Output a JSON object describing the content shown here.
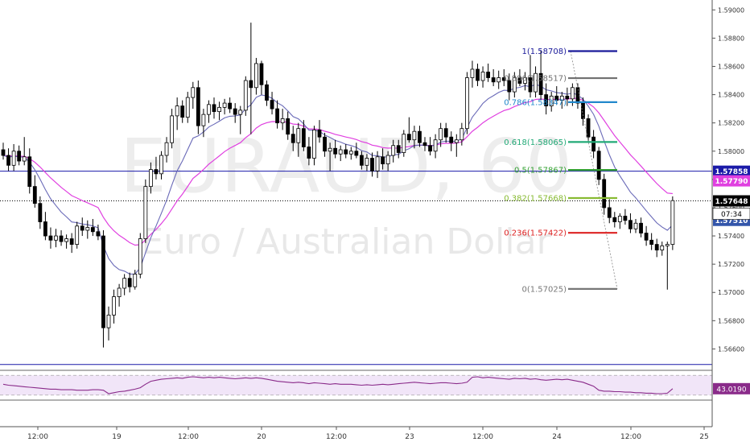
{
  "chart_data": {
    "type": "candlestick",
    "watermark": {
      "symbol": "EURAUD, 60",
      "description": "Euro / Australian Dollar"
    },
    "y_axis": {
      "range": [
        1.5646,
        1.5907
      ],
      "ticks": [
        "1.59000",
        "1.58800",
        "1.58600",
        "1.58400",
        "1.58200",
        "1.58000",
        "1.57800",
        "1.57600",
        "1.57400",
        "1.57200",
        "1.57000",
        "1.56800",
        "1.56600"
      ]
    },
    "x_axis": {
      "ticks": [
        "12:00",
        "19",
        "12:00",
        "20",
        "12:00",
        "23",
        "12:00",
        "24",
        "12:00",
        "25"
      ]
    },
    "price_tags": [
      {
        "value": 1.57858,
        "label": "1.57858",
        "color": "#1a1aa8",
        "text_color": "#ffffff"
      },
      {
        "value": 1.5779,
        "label": "1.57790",
        "color": "#e040e0",
        "text_color": "#ffffff"
      },
      {
        "value": 1.57648,
        "label": "1.57648",
        "color": "#000000",
        "text_color": "#ffffff"
      },
      {
        "value": 1.5751,
        "label": "1.57510",
        "color": "#3355aa",
        "text_color": "#ffffff"
      }
    ],
    "countdown": "07:34",
    "horizontal_lines": [
      {
        "value": 1.57858,
        "color": "#1a1aa8",
        "style": "solid"
      },
      {
        "value": 1.57648,
        "color": "#000000",
        "style": "dotted"
      },
      {
        "value": 1.5649,
        "color": "#1a1aa8",
        "style": "solid"
      }
    ],
    "fibonacci": [
      {
        "label": "1(1.58708)",
        "value": 1.58708,
        "color": "#1a1a9a"
      },
      {
        "label": "0.886(1.58517)",
        "value": 1.58517,
        "color": "#707070"
      },
      {
        "label": "0.786(1.58347)",
        "value": 1.58347,
        "color": "#2288cc"
      },
      {
        "label": "0.618(1.58065)",
        "value": 1.58065,
        "color": "#22aa77"
      },
      {
        "label": "0.5(1.57867)",
        "value": 1.57867,
        "color": "#33a033"
      },
      {
        "label": "0.382(1.57668)",
        "value": 1.57668,
        "color": "#88bb33"
      },
      {
        "label": "0.236(1.57422)",
        "value": 1.57422,
        "color": "#dd2222"
      },
      {
        "label": "0(1.57025)",
        "value": 1.57025,
        "color": "#777777"
      }
    ],
    "candles": [
      {
        "o": 1.5801,
        "h": 1.5806,
        "l": 1.5794,
        "c": 1.5797
      },
      {
        "o": 1.5797,
        "h": 1.5802,
        "l": 1.5786,
        "c": 1.579
      },
      {
        "o": 1.579,
        "h": 1.5805,
        "l": 1.5786,
        "c": 1.58
      },
      {
        "o": 1.58,
        "h": 1.5804,
        "l": 1.579,
        "c": 1.5793
      },
      {
        "o": 1.5793,
        "h": 1.581,
        "l": 1.579,
        "c": 1.5796
      },
      {
        "o": 1.5796,
        "h": 1.5802,
        "l": 1.577,
        "c": 1.5775
      },
      {
        "o": 1.5775,
        "h": 1.5783,
        "l": 1.576,
        "c": 1.5763
      },
      {
        "o": 1.5763,
        "h": 1.5768,
        "l": 1.5745,
        "c": 1.575
      },
      {
        "o": 1.575,
        "h": 1.5757,
        "l": 1.5737,
        "c": 1.574
      },
      {
        "o": 1.574,
        "h": 1.5746,
        "l": 1.5731,
        "c": 1.5737
      },
      {
        "o": 1.5737,
        "h": 1.5745,
        "l": 1.5732,
        "c": 1.574
      },
      {
        "o": 1.574,
        "h": 1.5744,
        "l": 1.5733,
        "c": 1.5736
      },
      {
        "o": 1.5736,
        "h": 1.5741,
        "l": 1.5731,
        "c": 1.5738
      },
      {
        "o": 1.5738,
        "h": 1.5742,
        "l": 1.5728,
        "c": 1.5734
      },
      {
        "o": 1.5734,
        "h": 1.575,
        "l": 1.5731,
        "c": 1.5747
      },
      {
        "o": 1.5747,
        "h": 1.5753,
        "l": 1.574,
        "c": 1.5744
      },
      {
        "o": 1.5744,
        "h": 1.5751,
        "l": 1.5738,
        "c": 1.5746
      },
      {
        "o": 1.5746,
        "h": 1.5752,
        "l": 1.574,
        "c": 1.5743
      },
      {
        "o": 1.5743,
        "h": 1.5748,
        "l": 1.5737,
        "c": 1.574
      },
      {
        "o": 1.574,
        "h": 1.5744,
        "l": 1.5661,
        "c": 1.5675
      },
      {
        "o": 1.5675,
        "h": 1.569,
        "l": 1.5666,
        "c": 1.5684
      },
      {
        "o": 1.5684,
        "h": 1.5702,
        "l": 1.5678,
        "c": 1.5697
      },
      {
        "o": 1.5697,
        "h": 1.5706,
        "l": 1.569,
        "c": 1.5703
      },
      {
        "o": 1.5703,
        "h": 1.5713,
        "l": 1.5698,
        "c": 1.571
      },
      {
        "o": 1.571,
        "h": 1.5714,
        "l": 1.57,
        "c": 1.5704
      },
      {
        "o": 1.5704,
        "h": 1.5716,
        "l": 1.5702,
        "c": 1.5713
      },
      {
        "o": 1.5713,
        "h": 1.5742,
        "l": 1.571,
        "c": 1.5738
      },
      {
        "o": 1.5738,
        "h": 1.578,
        "l": 1.5735,
        "c": 1.5775
      },
      {
        "o": 1.5775,
        "h": 1.5792,
        "l": 1.577,
        "c": 1.5787
      },
      {
        "o": 1.5787,
        "h": 1.5796,
        "l": 1.578,
        "c": 1.5784
      },
      {
        "o": 1.5784,
        "h": 1.58,
        "l": 1.578,
        "c": 1.5797
      },
      {
        "o": 1.5797,
        "h": 1.581,
        "l": 1.5792,
        "c": 1.5806
      },
      {
        "o": 1.5806,
        "h": 1.583,
        "l": 1.5802,
        "c": 1.5825
      },
      {
        "o": 1.5825,
        "h": 1.5838,
        "l": 1.5815,
        "c": 1.5832
      },
      {
        "o": 1.5832,
        "h": 1.5836,
        "l": 1.582,
        "c": 1.5824
      },
      {
        "o": 1.5824,
        "h": 1.5842,
        "l": 1.582,
        "c": 1.5838
      },
      {
        "o": 1.5838,
        "h": 1.5849,
        "l": 1.583,
        "c": 1.5845
      },
      {
        "o": 1.5845,
        "h": 1.585,
        "l": 1.5812,
        "c": 1.5818
      },
      {
        "o": 1.5818,
        "h": 1.583,
        "l": 1.581,
        "c": 1.5826
      },
      {
        "o": 1.5826,
        "h": 1.5836,
        "l": 1.582,
        "c": 1.5833
      },
      {
        "o": 1.5833,
        "h": 1.5838,
        "l": 1.5823,
        "c": 1.5828
      },
      {
        "o": 1.5828,
        "h": 1.5835,
        "l": 1.5822,
        "c": 1.5831
      },
      {
        "o": 1.5831,
        "h": 1.5837,
        "l": 1.5826,
        "c": 1.5834
      },
      {
        "o": 1.5834,
        "h": 1.5838,
        "l": 1.5827,
        "c": 1.583
      },
      {
        "o": 1.583,
        "h": 1.5834,
        "l": 1.582,
        "c": 1.5826
      },
      {
        "o": 1.5826,
        "h": 1.5832,
        "l": 1.5812,
        "c": 1.5829
      },
      {
        "o": 1.5829,
        "h": 1.5853,
        "l": 1.5825,
        "c": 1.585
      },
      {
        "o": 1.585,
        "h": 1.5891,
        "l": 1.5812,
        "c": 1.5845
      },
      {
        "o": 1.5845,
        "h": 1.5866,
        "l": 1.584,
        "c": 1.5862
      },
      {
        "o": 1.5862,
        "h": 1.5864,
        "l": 1.584,
        "c": 1.5847
      },
      {
        "o": 1.5847,
        "h": 1.585,
        "l": 1.5832,
        "c": 1.5836
      },
      {
        "o": 1.5836,
        "h": 1.5842,
        "l": 1.5826,
        "c": 1.583
      },
      {
        "o": 1.583,
        "h": 1.5836,
        "l": 1.5816,
        "c": 1.582
      },
      {
        "o": 1.582,
        "h": 1.583,
        "l": 1.5815,
        "c": 1.5823
      },
      {
        "o": 1.5823,
        "h": 1.5828,
        "l": 1.5808,
        "c": 1.5812
      },
      {
        "o": 1.5812,
        "h": 1.5818,
        "l": 1.58,
        "c": 1.5806
      },
      {
        "o": 1.5806,
        "h": 1.582,
        "l": 1.5796,
        "c": 1.5816
      },
      {
        "o": 1.5816,
        "h": 1.5822,
        "l": 1.58,
        "c": 1.5803
      },
      {
        "o": 1.5803,
        "h": 1.581,
        "l": 1.579,
        "c": 1.5795
      },
      {
        "o": 1.5795,
        "h": 1.5818,
        "l": 1.579,
        "c": 1.5815
      },
      {
        "o": 1.5815,
        "h": 1.5822,
        "l": 1.5806,
        "c": 1.581
      },
      {
        "o": 1.581,
        "h": 1.5813,
        "l": 1.5796,
        "c": 1.58
      },
      {
        "o": 1.58,
        "h": 1.5806,
        "l": 1.5786,
        "c": 1.5802
      },
      {
        "o": 1.5802,
        "h": 1.5808,
        "l": 1.5795,
        "c": 1.5798
      },
      {
        "o": 1.5798,
        "h": 1.5804,
        "l": 1.5793,
        "c": 1.5801
      },
      {
        "o": 1.5801,
        "h": 1.5805,
        "l": 1.5795,
        "c": 1.5798
      },
      {
        "o": 1.5798,
        "h": 1.5803,
        "l": 1.5794,
        "c": 1.58
      },
      {
        "o": 1.58,
        "h": 1.5806,
        "l": 1.5795,
        "c": 1.5797
      },
      {
        "o": 1.5797,
        "h": 1.58,
        "l": 1.5787,
        "c": 1.579
      },
      {
        "o": 1.579,
        "h": 1.5798,
        "l": 1.5786,
        "c": 1.5795
      },
      {
        "o": 1.5795,
        "h": 1.5799,
        "l": 1.5782,
        "c": 1.5786
      },
      {
        "o": 1.5786,
        "h": 1.58,
        "l": 1.5781,
        "c": 1.5796
      },
      {
        "o": 1.5796,
        "h": 1.5802,
        "l": 1.5787,
        "c": 1.5791
      },
      {
        "o": 1.5791,
        "h": 1.58,
        "l": 1.5786,
        "c": 1.5797
      },
      {
        "o": 1.5797,
        "h": 1.5808,
        "l": 1.5792,
        "c": 1.5804
      },
      {
        "o": 1.5804,
        "h": 1.5808,
        "l": 1.5795,
        "c": 1.5799
      },
      {
        "o": 1.5799,
        "h": 1.5815,
        "l": 1.5796,
        "c": 1.5812
      },
      {
        "o": 1.5812,
        "h": 1.5824,
        "l": 1.5806,
        "c": 1.5808
      },
      {
        "o": 1.5808,
        "h": 1.5818,
        "l": 1.5802,
        "c": 1.5814
      },
      {
        "o": 1.5814,
        "h": 1.5818,
        "l": 1.5803,
        "c": 1.5806
      },
      {
        "o": 1.5806,
        "h": 1.581,
        "l": 1.58,
        "c": 1.5804
      },
      {
        "o": 1.5804,
        "h": 1.581,
        "l": 1.5797,
        "c": 1.58
      },
      {
        "o": 1.58,
        "h": 1.5812,
        "l": 1.5795,
        "c": 1.5808
      },
      {
        "o": 1.5808,
        "h": 1.582,
        "l": 1.5803,
        "c": 1.5816
      },
      {
        "o": 1.5816,
        "h": 1.582,
        "l": 1.5806,
        "c": 1.581
      },
      {
        "o": 1.581,
        "h": 1.5814,
        "l": 1.58,
        "c": 1.5806
      },
      {
        "o": 1.5806,
        "h": 1.5812,
        "l": 1.5796,
        "c": 1.5808
      },
      {
        "o": 1.5808,
        "h": 1.582,
        "l": 1.5804,
        "c": 1.5816
      },
      {
        "o": 1.5816,
        "h": 1.5856,
        "l": 1.5812,
        "c": 1.5852
      },
      {
        "o": 1.5852,
        "h": 1.5864,
        "l": 1.5845,
        "c": 1.5858
      },
      {
        "o": 1.5858,
        "h": 1.5862,
        "l": 1.5846,
        "c": 1.585
      },
      {
        "o": 1.585,
        "h": 1.586,
        "l": 1.5845,
        "c": 1.5856
      },
      {
        "o": 1.5856,
        "h": 1.5862,
        "l": 1.5849,
        "c": 1.5852
      },
      {
        "o": 1.5852,
        "h": 1.5858,
        "l": 1.5846,
        "c": 1.5849
      },
      {
        "o": 1.5849,
        "h": 1.5857,
        "l": 1.5844,
        "c": 1.5852
      },
      {
        "o": 1.5852,
        "h": 1.5858,
        "l": 1.5846,
        "c": 1.585
      },
      {
        "o": 1.585,
        "h": 1.5855,
        "l": 1.5836,
        "c": 1.5842
      },
      {
        "o": 1.5842,
        "h": 1.5856,
        "l": 1.5838,
        "c": 1.5852
      },
      {
        "o": 1.5852,
        "h": 1.5858,
        "l": 1.5846,
        "c": 1.5848
      },
      {
        "o": 1.5848,
        "h": 1.5856,
        "l": 1.5843,
        "c": 1.5852
      },
      {
        "o": 1.5852,
        "h": 1.5868,
        "l": 1.5838,
        "c": 1.5842
      },
      {
        "o": 1.5842,
        "h": 1.586,
        "l": 1.5838,
        "c": 1.5855
      },
      {
        "o": 1.5855,
        "h": 1.5871,
        "l": 1.5836,
        "c": 1.584
      },
      {
        "o": 1.584,
        "h": 1.5848,
        "l": 1.5826,
        "c": 1.5832
      },
      {
        "o": 1.5832,
        "h": 1.5842,
        "l": 1.5828,
        "c": 1.5839
      },
      {
        "o": 1.5839,
        "h": 1.5846,
        "l": 1.5833,
        "c": 1.5836
      },
      {
        "o": 1.5836,
        "h": 1.5842,
        "l": 1.583,
        "c": 1.5839
      },
      {
        "o": 1.5839,
        "h": 1.5845,
        "l": 1.5832,
        "c": 1.5837
      },
      {
        "o": 1.5837,
        "h": 1.5848,
        "l": 1.5832,
        "c": 1.5845
      },
      {
        "o": 1.5845,
        "h": 1.5848,
        "l": 1.583,
        "c": 1.5834
      },
      {
        "o": 1.5834,
        "h": 1.5838,
        "l": 1.5818,
        "c": 1.5823
      },
      {
        "o": 1.5823,
        "h": 1.5826,
        "l": 1.5806,
        "c": 1.581
      },
      {
        "o": 1.581,
        "h": 1.5815,
        "l": 1.5795,
        "c": 1.58
      },
      {
        "o": 1.58,
        "h": 1.5803,
        "l": 1.5776,
        "c": 1.578
      },
      {
        "o": 1.578,
        "h": 1.5784,
        "l": 1.5755,
        "c": 1.576
      },
      {
        "o": 1.576,
        "h": 1.5766,
        "l": 1.5749,
        "c": 1.5753
      },
      {
        "o": 1.5753,
        "h": 1.5757,
        "l": 1.5746,
        "c": 1.575
      },
      {
        "o": 1.575,
        "h": 1.5756,
        "l": 1.5745,
        "c": 1.5754
      },
      {
        "o": 1.5754,
        "h": 1.5759,
        "l": 1.5748,
        "c": 1.5751
      },
      {
        "o": 1.5751,
        "h": 1.5756,
        "l": 1.5742,
        "c": 1.5745
      },
      {
        "o": 1.5745,
        "h": 1.5752,
        "l": 1.5742,
        "c": 1.5749
      },
      {
        "o": 1.5749,
        "h": 1.5753,
        "l": 1.5739,
        "c": 1.5742
      },
      {
        "o": 1.5742,
        "h": 1.5747,
        "l": 1.5733,
        "c": 1.5737
      },
      {
        "o": 1.5737,
        "h": 1.5742,
        "l": 1.573,
        "c": 1.5734
      },
      {
        "o": 1.5734,
        "h": 1.5738,
        "l": 1.5725,
        "c": 1.573
      },
      {
        "o": 1.573,
        "h": 1.5736,
        "l": 1.5726,
        "c": 1.5733
      },
      {
        "o": 1.5733,
        "h": 1.5736,
        "l": 1.5702,
        "c": 1.5734
      },
      {
        "o": 1.5734,
        "h": 1.5768,
        "l": 1.573,
        "c": 1.5765
      }
    ],
    "rsi": {
      "value_label": "43.0190",
      "upper": 70,
      "lower": 30,
      "values": [
        52,
        50,
        49,
        48,
        47,
        46,
        45,
        44,
        43,
        42,
        42,
        41,
        41,
        41,
        40,
        40,
        40,
        41,
        41,
        40,
        33,
        35,
        37,
        38,
        40,
        42,
        45,
        52,
        58,
        60,
        62,
        63,
        64,
        65,
        64,
        66,
        67,
        66,
        65,
        66,
        65,
        66,
        65,
        64,
        63,
        64,
        65,
        64,
        65,
        64,
        62,
        60,
        58,
        57,
        56,
        55,
        56,
        55,
        53,
        55,
        54,
        53,
        52,
        53,
        52,
        52,
        52,
        51,
        50,
        51,
        50,
        51,
        52,
        51,
        52,
        53,
        54,
        55,
        56,
        55,
        54,
        53,
        54,
        55,
        55,
        54,
        53,
        54,
        56,
        66,
        67,
        65,
        66,
        65,
        64,
        63,
        62,
        64,
        63,
        64,
        62,
        63,
        61,
        60,
        61,
        62,
        61,
        62,
        60,
        58,
        56,
        52,
        48,
        40,
        38,
        38,
        37,
        37,
        36,
        36,
        35,
        35,
        34,
        34,
        33,
        33,
        34,
        43
      ]
    }
  }
}
